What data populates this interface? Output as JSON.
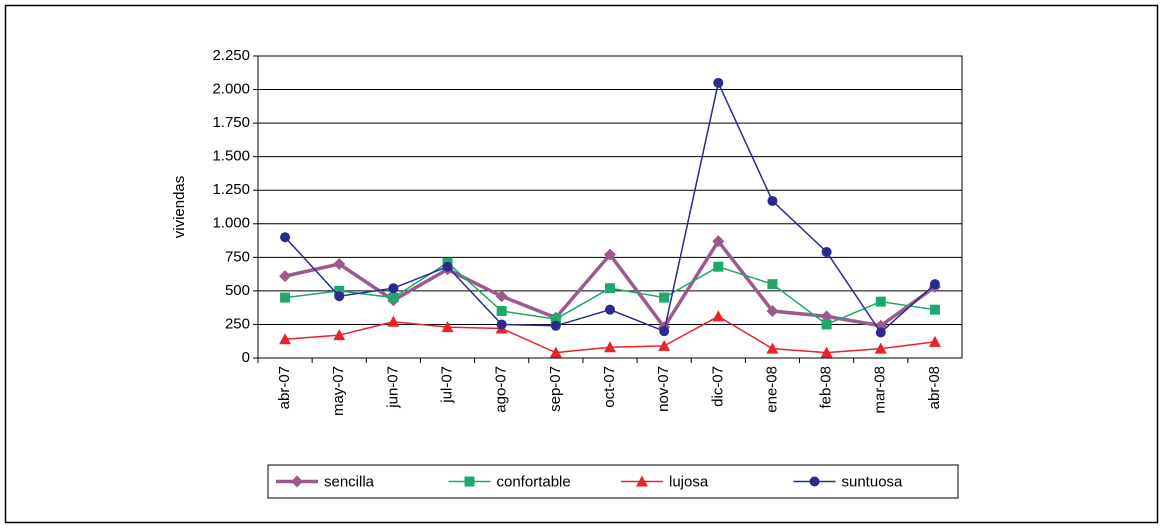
{
  "chart_data": {
    "type": "line",
    "y_label": "viviendas",
    "categories": [
      "abr-07",
      "may-07",
      "jun-07",
      "jul-07",
      "ago-07",
      "sep-07",
      "oct-07",
      "nov-07",
      "dic-07",
      "ene-08",
      "feb-08",
      "mar-08",
      "abr-08"
    ],
    "series": [
      {
        "name": "sencilla",
        "color": "#9c5a8c",
        "marker": "diamond",
        "values": [
          610,
          700,
          430,
          660,
          460,
          300,
          770,
          230,
          870,
          350,
          310,
          240,
          530
        ]
      },
      {
        "name": "confortable",
        "color": "#1fa86c",
        "marker": "square",
        "values": [
          450,
          500,
          450,
          710,
          350,
          290,
          520,
          450,
          680,
          550,
          250,
          420,
          360
        ]
      },
      {
        "name": "lujosa",
        "color": "#e8232a",
        "marker": "triangle",
        "values": [
          140,
          170,
          270,
          230,
          220,
          40,
          80,
          90,
          310,
          70,
          40,
          70,
          120
        ]
      },
      {
        "name": "suntuosa",
        "color": "#2b2b8f",
        "marker": "circle",
        "values": [
          900,
          460,
          520,
          680,
          250,
          240,
          360,
          200,
          2050,
          1170,
          790,
          190,
          550
        ]
      }
    ],
    "ylim": [
      0,
      2250
    ],
    "yticks": [
      0,
      250,
      500,
      750,
      {
        "value": 1000,
        "label": "1.000"
      },
      {
        "value": 1250,
        "label": "1.250"
      },
      {
        "value": 1500,
        "label": "1.500"
      },
      {
        "value": 1750,
        "label": "1.750"
      },
      {
        "value": 2000,
        "label": "2.000"
      },
      {
        "value": 2250,
        "label": "2.250"
      }
    ],
    "grid": true,
    "legend": "bottom"
  }
}
